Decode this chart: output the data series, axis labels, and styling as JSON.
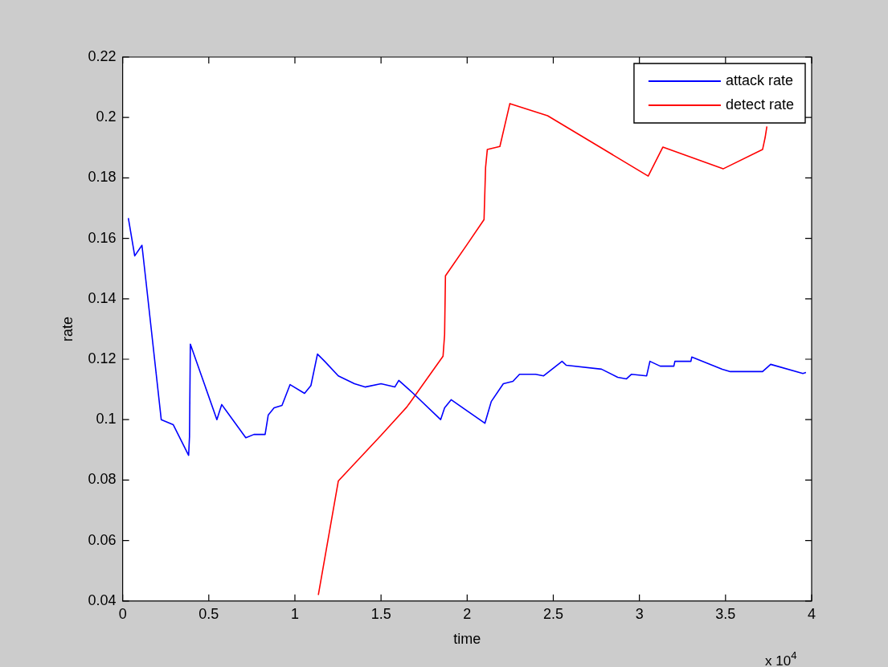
{
  "chart_data": {
    "type": "line",
    "xlabel": "time",
    "ylabel": "rate",
    "xlim": [
      0,
      4
    ],
    "ylim": [
      0.04,
      0.22
    ],
    "xticks": [
      0,
      0.5,
      1,
      1.5,
      2,
      2.5,
      3,
      3.5,
      4
    ],
    "yticks": [
      0.04,
      0.06,
      0.08,
      0.1,
      0.12,
      0.14,
      0.16,
      0.18,
      0.2,
      0.22
    ],
    "grid": false,
    "legend": "top right",
    "line_style": "solid",
    "marker": "none",
    "annotations": [
      "x 10$^{4}$"
    ],
    "series": [
      {
        "name": "attack rate",
        "color": "#0000ff",
        "x": [
          0.033,
          0.07,
          0.112,
          0.135,
          0.224,
          0.294,
          0.383,
          0.388,
          0.393,
          0.547,
          0.575,
          0.715,
          0.762,
          0.827,
          0.845,
          0.879,
          0.925,
          0.972,
          1.056,
          1.093,
          1.131,
          1.173,
          1.252,
          1.346,
          1.407,
          1.5,
          1.58,
          1.603,
          1.687,
          1.846,
          1.869,
          1.907,
          2.103,
          2.14,
          2.21,
          2.266,
          2.304,
          2.397,
          2.444,
          2.551,
          2.575,
          2.78,
          2.874,
          2.925,
          2.953,
          3.042,
          3.061,
          3.121,
          3.2,
          3.206,
          3.299,
          3.304,
          3.481,
          3.528,
          3.715,
          3.762,
          3.949,
          3.967
        ],
        "values": [
          0.1667,
          0.1542,
          0.1577,
          0.146,
          0.1,
          0.0983,
          0.0882,
          0.0943,
          0.125,
          0.1,
          0.105,
          0.094,
          0.0951,
          0.0951,
          0.1015,
          0.1039,
          0.1047,
          0.1116,
          0.1087,
          0.1113,
          0.1217,
          0.1193,
          0.1145,
          0.1119,
          0.1108,
          0.1119,
          0.1108,
          0.113,
          0.1087,
          0.1,
          0.1039,
          0.1066,
          0.0988,
          0.106,
          0.1119,
          0.1127,
          0.115,
          0.115,
          0.1145,
          0.1193,
          0.118,
          0.1167,
          0.114,
          0.1135,
          0.115,
          0.1145,
          0.1193,
          0.1177,
          0.1177,
          0.1193,
          0.1193,
          0.1207,
          0.1167,
          0.1159,
          0.1159,
          0.1183,
          0.1153,
          0.1156
        ]
      },
      {
        "name": "detect rate",
        "color": "#ff0000",
        "x": [
          1.136,
          1.252,
          1.5,
          1.65,
          1.86,
          1.869,
          1.874,
          2.0,
          2.098,
          2.107,
          2.117,
          2.19,
          2.248,
          2.467,
          3.051,
          3.136,
          3.486,
          3.715,
          3.73,
          3.74
        ],
        "values": [
          0.042,
          0.0797,
          0.0948,
          0.1042,
          0.121,
          0.1281,
          0.1476,
          0.158,
          0.1662,
          0.1835,
          0.1894,
          0.1904,
          0.2046,
          0.2006,
          0.1806,
          0.1902,
          0.183,
          0.1894,
          0.1934,
          0.197
        ]
      }
    ]
  }
}
